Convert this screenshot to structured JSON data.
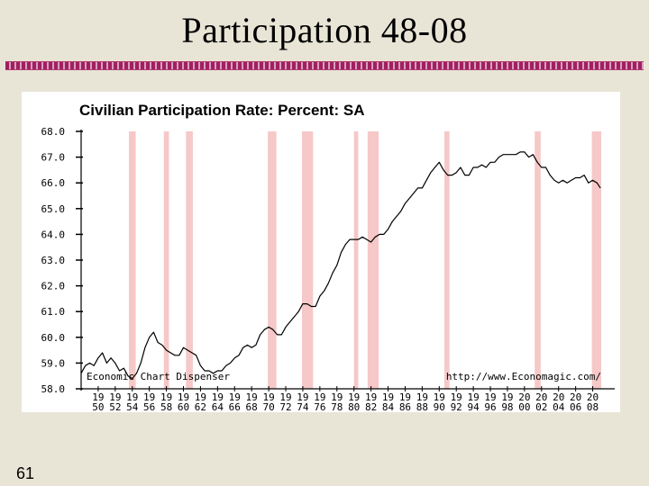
{
  "slide": {
    "title": "Participation 48-08",
    "number": "61"
  },
  "chart_data": {
    "type": "line",
    "title": "Civilian Participation Rate: Percent: SA",
    "xlabel": "",
    "ylabel": "",
    "watermark_left": "Economic Chart Dispenser",
    "watermark_right": "http://www.Economagic.com/",
    "xlim": [
      1948,
      2009
    ],
    "ylim": [
      58.0,
      68.0
    ],
    "y_ticks": [
      "58.0",
      "59.0",
      "60.0",
      "61.0",
      "62.0",
      "63.0",
      "64.0",
      "65.0",
      "66.0",
      "67.0",
      "68.0"
    ],
    "x_ticks": [
      {
        "top": "19",
        "bottom": "50",
        "year": 1950
      },
      {
        "top": "19",
        "bottom": "52",
        "year": 1952
      },
      {
        "top": "19",
        "bottom": "54",
        "year": 1954
      },
      {
        "top": "19",
        "bottom": "56",
        "year": 1956
      },
      {
        "top": "19",
        "bottom": "58",
        "year": 1958
      },
      {
        "top": "19",
        "bottom": "60",
        "year": 1960
      },
      {
        "top": "19",
        "bottom": "62",
        "year": 1962
      },
      {
        "top": "19",
        "bottom": "64",
        "year": 1964
      },
      {
        "top": "19",
        "bottom": "66",
        "year": 1966
      },
      {
        "top": "19",
        "bottom": "68",
        "year": 1968
      },
      {
        "top": "19",
        "bottom": "70",
        "year": 1970
      },
      {
        "top": "19",
        "bottom": "72",
        "year": 1972
      },
      {
        "top": "19",
        "bottom": "74",
        "year": 1974
      },
      {
        "top": "19",
        "bottom": "76",
        "year": 1976
      },
      {
        "top": "19",
        "bottom": "78",
        "year": 1978
      },
      {
        "top": "19",
        "bottom": "80",
        "year": 1980
      },
      {
        "top": "19",
        "bottom": "82",
        "year": 1982
      },
      {
        "top": "19",
        "bottom": "84",
        "year": 1984
      },
      {
        "top": "19",
        "bottom": "86",
        "year": 1986
      },
      {
        "top": "19",
        "bottom": "88",
        "year": 1988
      },
      {
        "top": "19",
        "bottom": "90",
        "year": 1990
      },
      {
        "top": "19",
        "bottom": "92",
        "year": 1992
      },
      {
        "top": "19",
        "bottom": "94",
        "year": 1994
      },
      {
        "top": "19",
        "bottom": "96",
        "year": 1996
      },
      {
        "top": "19",
        "bottom": "98",
        "year": 1998
      },
      {
        "top": "20",
        "bottom": "00",
        "year": 2000
      },
      {
        "top": "20",
        "bottom": "02",
        "year": 2002
      },
      {
        "top": "20",
        "bottom": "04",
        "year": 2004
      },
      {
        "top": "20",
        "bottom": "06",
        "year": 2006
      },
      {
        "top": "20",
        "bottom": "08",
        "year": 2008
      }
    ],
    "recessions": [
      [
        1953.6,
        1954.4
      ],
      [
        1957.7,
        1958.3
      ],
      [
        1960.3,
        1961.1
      ],
      [
        1969.9,
        1970.9
      ],
      [
        1973.9,
        1975.2
      ],
      [
        1980.0,
        1980.5
      ],
      [
        1981.6,
        1982.9
      ],
      [
        1990.6,
        1991.2
      ],
      [
        2001.2,
        2001.9
      ],
      [
        2007.9,
        2009.0
      ]
    ],
    "series": [
      {
        "values": [
          [
            1948.0,
            58.6
          ],
          [
            1948.5,
            58.9
          ],
          [
            1949.0,
            59.0
          ],
          [
            1949.5,
            58.9
          ],
          [
            1950.0,
            59.2
          ],
          [
            1950.5,
            59.4
          ],
          [
            1951.0,
            59.0
          ],
          [
            1951.5,
            59.2
          ],
          [
            1952.0,
            59.0
          ],
          [
            1952.5,
            58.7
          ],
          [
            1953.0,
            58.8
          ],
          [
            1953.5,
            58.5
          ],
          [
            1954.0,
            58.4
          ],
          [
            1954.5,
            58.6
          ],
          [
            1955.0,
            59.0
          ],
          [
            1955.5,
            59.6
          ],
          [
            1956.0,
            60.0
          ],
          [
            1956.5,
            60.2
          ],
          [
            1957.0,
            59.8
          ],
          [
            1957.5,
            59.7
          ],
          [
            1958.0,
            59.5
          ],
          [
            1958.5,
            59.4
          ],
          [
            1959.0,
            59.3
          ],
          [
            1959.5,
            59.3
          ],
          [
            1960.0,
            59.6
          ],
          [
            1960.5,
            59.5
          ],
          [
            1961.0,
            59.4
          ],
          [
            1961.5,
            59.3
          ],
          [
            1962.0,
            58.9
          ],
          [
            1962.5,
            58.7
          ],
          [
            1963.0,
            58.7
          ],
          [
            1963.5,
            58.6
          ],
          [
            1964.0,
            58.7
          ],
          [
            1964.5,
            58.7
          ],
          [
            1965.0,
            58.9
          ],
          [
            1965.5,
            59.0
          ],
          [
            1966.0,
            59.2
          ],
          [
            1966.5,
            59.3
          ],
          [
            1967.0,
            59.6
          ],
          [
            1967.5,
            59.7
          ],
          [
            1968.0,
            59.6
          ],
          [
            1968.5,
            59.7
          ],
          [
            1969.0,
            60.1
          ],
          [
            1969.5,
            60.3
          ],
          [
            1970.0,
            60.4
          ],
          [
            1970.5,
            60.3
          ],
          [
            1971.0,
            60.1
          ],
          [
            1971.5,
            60.1
          ],
          [
            1972.0,
            60.4
          ],
          [
            1972.5,
            60.6
          ],
          [
            1973.0,
            60.8
          ],
          [
            1973.5,
            61.0
          ],
          [
            1974.0,
            61.3
          ],
          [
            1974.5,
            61.3
          ],
          [
            1975.0,
            61.2
          ],
          [
            1975.5,
            61.2
          ],
          [
            1976.0,
            61.6
          ],
          [
            1976.5,
            61.8
          ],
          [
            1977.0,
            62.1
          ],
          [
            1977.5,
            62.5
          ],
          [
            1978.0,
            62.8
          ],
          [
            1978.5,
            63.3
          ],
          [
            1979.0,
            63.6
          ],
          [
            1979.5,
            63.8
          ],
          [
            1980.0,
            63.8
          ],
          [
            1980.5,
            63.8
          ],
          [
            1981.0,
            63.9
          ],
          [
            1981.5,
            63.8
          ],
          [
            1982.0,
            63.7
          ],
          [
            1982.5,
            63.9
          ],
          [
            1983.0,
            64.0
          ],
          [
            1983.5,
            64.0
          ],
          [
            1984.0,
            64.2
          ],
          [
            1984.5,
            64.5
          ],
          [
            1985.0,
            64.7
          ],
          [
            1985.5,
            64.9
          ],
          [
            1986.0,
            65.2
          ],
          [
            1986.5,
            65.4
          ],
          [
            1987.0,
            65.6
          ],
          [
            1987.5,
            65.8
          ],
          [
            1988.0,
            65.8
          ],
          [
            1988.5,
            66.1
          ],
          [
            1989.0,
            66.4
          ],
          [
            1989.5,
            66.6
          ],
          [
            1990.0,
            66.8
          ],
          [
            1990.5,
            66.5
          ],
          [
            1991.0,
            66.3
          ],
          [
            1991.5,
            66.3
          ],
          [
            1992.0,
            66.4
          ],
          [
            1992.5,
            66.6
          ],
          [
            1993.0,
            66.3
          ],
          [
            1993.5,
            66.3
          ],
          [
            1994.0,
            66.6
          ],
          [
            1994.5,
            66.6
          ],
          [
            1995.0,
            66.7
          ],
          [
            1995.5,
            66.6
          ],
          [
            1996.0,
            66.8
          ],
          [
            1996.5,
            66.8
          ],
          [
            1997.0,
            67.0
          ],
          [
            1997.5,
            67.1
          ],
          [
            1998.0,
            67.1
          ],
          [
            1998.5,
            67.1
          ],
          [
            1999.0,
            67.1
          ],
          [
            1999.5,
            67.2
          ],
          [
            2000.0,
            67.2
          ],
          [
            2000.5,
            67.0
          ],
          [
            2001.0,
            67.1
          ],
          [
            2001.5,
            66.8
          ],
          [
            2002.0,
            66.6
          ],
          [
            2002.5,
            66.6
          ],
          [
            2003.0,
            66.3
          ],
          [
            2003.5,
            66.1
          ],
          [
            2004.0,
            66.0
          ],
          [
            2004.5,
            66.1
          ],
          [
            2005.0,
            66.0
          ],
          [
            2005.5,
            66.1
          ],
          [
            2006.0,
            66.2
          ],
          [
            2006.5,
            66.2
          ],
          [
            2007.0,
            66.3
          ],
          [
            2007.5,
            66.0
          ],
          [
            2008.0,
            66.1
          ],
          [
            2008.5,
            66.0
          ],
          [
            2008.9,
            65.8
          ]
        ]
      }
    ],
    "grid": false,
    "colors": {
      "line": "#000000",
      "recession": "#f6c8c8",
      "background": "#ffffff"
    }
  }
}
